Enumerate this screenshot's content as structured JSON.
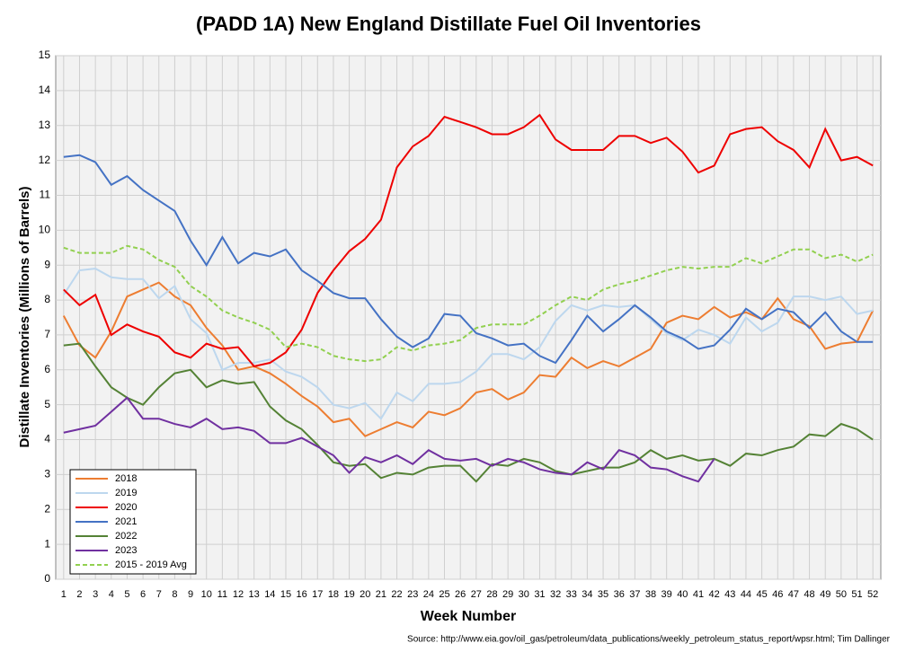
{
  "chart_data": {
    "type": "line",
    "title": "(PADD 1A) New England Distillate Fuel Oil Inventories",
    "x_label": "Week Number",
    "y_label": "Distillate Inventories (Millions of Barrels)",
    "source": "Source: http://www.eia.gov/oil_gas/petroleum/data_publications/weekly_petroleum_status_report/wpsr.html; Tim Dallinger",
    "x": [
      1,
      2,
      3,
      4,
      5,
      6,
      7,
      8,
      9,
      10,
      11,
      12,
      13,
      14,
      15,
      16,
      17,
      18,
      19,
      20,
      21,
      22,
      23,
      24,
      25,
      26,
      27,
      28,
      29,
      30,
      31,
      32,
      33,
      34,
      35,
      36,
      37,
      38,
      39,
      40,
      41,
      42,
      43,
      44,
      45,
      46,
      47,
      48,
      49,
      50,
      51,
      52
    ],
    "xlim": [
      0.5,
      52.5
    ],
    "xticks": [
      1,
      2,
      3,
      4,
      5,
      6,
      7,
      8,
      9,
      10,
      11,
      12,
      13,
      14,
      15,
      16,
      17,
      18,
      19,
      20,
      21,
      22,
      23,
      24,
      25,
      26,
      27,
      28,
      29,
      30,
      31,
      32,
      33,
      34,
      35,
      36,
      37,
      38,
      39,
      40,
      41,
      42,
      43,
      44,
      45,
      46,
      47,
      48,
      49,
      50,
      51,
      52
    ],
    "ylim": [
      0,
      15
    ],
    "yticks": [
      0,
      1,
      2,
      3,
      4,
      5,
      6,
      7,
      8,
      9,
      10,
      11,
      12,
      13,
      14,
      15
    ],
    "grid": true,
    "legend": "lower left",
    "series": [
      {
        "name": "2018",
        "color": "#ed7d31",
        "line_style": "solid",
        "values": [
          7.55,
          6.7,
          6.35,
          7.1,
          8.1,
          8.3,
          8.5,
          8.1,
          7.85,
          7.2,
          6.7,
          6.0,
          6.1,
          5.9,
          5.6,
          5.25,
          4.95,
          4.5,
          4.6,
          4.1,
          4.3,
          4.5,
          4.35,
          4.8,
          4.7,
          4.9,
          5.35,
          5.45,
          5.15,
          5.35,
          5.85,
          5.8,
          6.35,
          6.05,
          6.25,
          6.1,
          6.35,
          6.6,
          7.35,
          7.55,
          7.45,
          7.8,
          7.5,
          7.65,
          7.45,
          8.05,
          7.45,
          7.25,
          6.6,
          6.75,
          6.8,
          7.7
        ]
      },
      {
        "name": "2019",
        "color": "#bdd7ee",
        "line_style": "solid",
        "values": [
          8.15,
          8.85,
          8.9,
          8.65,
          8.6,
          8.6,
          8.05,
          8.4,
          7.45,
          7.05,
          6.0,
          6.2,
          6.2,
          6.3,
          5.95,
          5.8,
          5.5,
          5.0,
          4.9,
          5.05,
          4.6,
          5.35,
          5.1,
          5.6,
          5.6,
          5.65,
          5.95,
          6.45,
          6.45,
          6.3,
          6.65,
          7.4,
          7.85,
          7.7,
          7.85,
          7.8,
          7.85,
          7.45,
          7.05,
          6.85,
          7.15,
          7.0,
          6.75,
          7.5,
          7.1,
          7.35,
          8.1,
          8.1,
          8.0,
          8.1,
          7.6,
          7.7
        ]
      },
      {
        "name": "2020",
        "color": "#ee0000",
        "line_style": "solid",
        "values": [
          8.3,
          7.85,
          8.15,
          7.0,
          7.3,
          7.1,
          6.95,
          6.5,
          6.35,
          6.75,
          6.6,
          6.65,
          6.1,
          6.2,
          6.5,
          7.15,
          8.2,
          8.85,
          9.4,
          9.75,
          10.3,
          11.8,
          12.4,
          12.7,
          13.25,
          13.1,
          12.95,
          12.75,
          12.75,
          12.95,
          13.3,
          12.6,
          12.3,
          12.3,
          12.3,
          12.7,
          12.7,
          12.5,
          12.65,
          12.25,
          11.65,
          11.85,
          12.75,
          12.9,
          12.95,
          12.55,
          12.3,
          11.8,
          12.9,
          12.0,
          12.1,
          11.85
        ]
      },
      {
        "name": "2021",
        "color": "#4472c4",
        "line_style": "solid",
        "values": [
          12.1,
          12.15,
          11.95,
          11.3,
          11.55,
          11.15,
          10.85,
          10.55,
          9.7,
          9.0,
          9.8,
          9.05,
          9.35,
          9.25,
          9.45,
          8.85,
          8.55,
          8.2,
          8.05,
          8.05,
          7.45,
          6.95,
          6.65,
          6.9,
          7.6,
          7.55,
          7.05,
          6.9,
          6.7,
          6.75,
          6.4,
          6.2,
          6.85,
          7.55,
          7.1,
          7.45,
          7.85,
          7.5,
          7.1,
          6.9,
          6.6,
          6.7,
          7.15,
          7.75,
          7.45,
          7.75,
          7.65,
          7.2,
          7.65,
          7.1,
          6.8,
          6.8
        ]
      },
      {
        "name": "2022",
        "color": "#548235",
        "line_style": "solid",
        "values": [
          6.7,
          6.75,
          6.1,
          5.5,
          5.2,
          5.0,
          5.5,
          5.9,
          6.0,
          5.5,
          5.7,
          5.6,
          5.65,
          4.95,
          4.55,
          4.3,
          3.85,
          3.35,
          3.25,
          3.3,
          2.9,
          3.05,
          3.0,
          3.2,
          3.25,
          3.25,
          2.8,
          3.3,
          3.25,
          3.45,
          3.35,
          3.1,
          3.0,
          3.1,
          3.2,
          3.2,
          3.35,
          3.7,
          3.45,
          3.55,
          3.4,
          3.45,
          3.25,
          3.6,
          3.55,
          3.7,
          3.8,
          4.15,
          4.1,
          4.45,
          4.3,
          4.0
        ]
      },
      {
        "name": "2023",
        "color": "#7030a0",
        "line_style": "solid",
        "values": [
          4.2,
          4.3,
          4.4,
          4.8,
          5.2,
          4.6,
          4.6,
          4.45,
          4.35,
          4.6,
          4.3,
          4.35,
          4.25,
          3.9,
          3.9,
          4.05,
          3.8,
          3.55,
          3.05,
          3.5,
          3.35,
          3.55,
          3.3,
          3.7,
          3.45,
          3.4,
          3.45,
          3.25,
          3.45,
          3.35,
          3.15,
          3.05,
          3.0,
          3.35,
          3.15,
          3.7,
          3.55,
          3.2,
          3.15,
          2.95,
          2.8,
          3.45,
          null,
          null,
          null,
          null,
          null,
          null,
          null,
          null,
          null,
          null
        ]
      },
      {
        "name": "2015 - 2019 Avg",
        "color": "#92d050",
        "line_style": "dashed",
        "values": [
          9.5,
          9.35,
          9.35,
          9.35,
          9.55,
          9.45,
          9.15,
          8.95,
          8.4,
          8.1,
          7.7,
          7.5,
          7.35,
          7.15,
          6.65,
          6.75,
          6.65,
          6.4,
          6.3,
          6.25,
          6.3,
          6.65,
          6.55,
          6.7,
          6.75,
          6.85,
          7.2,
          7.3,
          7.3,
          7.3,
          7.55,
          7.85,
          8.1,
          8.0,
          8.3,
          8.45,
          8.55,
          8.7,
          8.85,
          8.95,
          8.9,
          8.95,
          8.95,
          9.2,
          9.05,
          9.25,
          9.45,
          9.45,
          9.2,
          9.3,
          9.1,
          9.3
        ]
      }
    ]
  }
}
